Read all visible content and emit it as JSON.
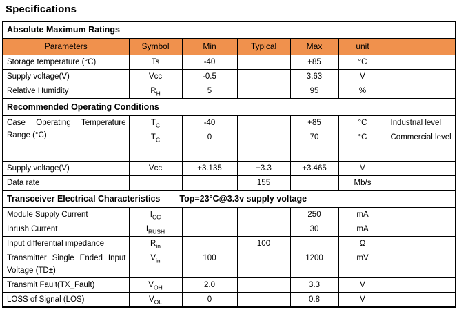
{
  "title": "Specifications",
  "table": {
    "header_bg": "#F0914D",
    "columns": [
      "Parameters",
      "Symbol",
      "Min",
      "Typical",
      "Max",
      "unit",
      ""
    ],
    "rows": [
      {
        "type": "section",
        "label": "Absolute Maximum Ratings"
      },
      {
        "type": "columns"
      },
      {
        "type": "data",
        "param": "Storage temperature (°C)",
        "symbol": "Ts",
        "sub": "",
        "min": "-40",
        "typical": "",
        "max": "+85",
        "unit": "°C",
        "note": ""
      },
      {
        "type": "data",
        "param": "Supply voltage(V)",
        "symbol": "Vcc",
        "sub": "",
        "min": "-0.5",
        "typical": "",
        "max": "3.63",
        "unit": "V",
        "note": ""
      },
      {
        "type": "data",
        "param": "Relative Humidity",
        "symbol": "R",
        "sub": "H",
        "min": "5",
        "typical": "",
        "max": "95",
        "unit": "%",
        "note": ""
      },
      {
        "type": "section",
        "label": "Recommended Operating Conditions"
      },
      {
        "type": "data",
        "param": "Case Operating Temperature Range (°C)",
        "param_rowspan": 2,
        "justify": true,
        "symbol": "T",
        "sub": "C",
        "min": "-40",
        "typical": "",
        "max": "+85",
        "unit": "°C",
        "note": "Industrial level"
      },
      {
        "type": "data",
        "param": null,
        "tall": true,
        "symbol": "T",
        "sub": "C",
        "min": "0",
        "typical": "",
        "max": "70",
        "unit": "°C",
        "note": "Commercial level"
      },
      {
        "type": "data",
        "param": "Supply voltage(V)",
        "symbol": "Vcc",
        "sub": "",
        "min": "+3.135",
        "typical": "+3.3",
        "max": "+3.465",
        "unit": "V",
        "note": ""
      },
      {
        "type": "data",
        "param": "Data rate",
        "symbol": "",
        "sub": "",
        "min": "",
        "typical": "155",
        "max": "",
        "unit": "Mb/s",
        "note": ""
      },
      {
        "type": "section",
        "label": "Transceiver Electrical Characteristics",
        "label2": "Top=23°C@3.3v supply voltage"
      },
      {
        "type": "data",
        "param": "Module Supply Current",
        "symbol": "I",
        "sub": "CC",
        "min": "",
        "typical": "",
        "max": "250",
        "unit": "mA",
        "note": ""
      },
      {
        "type": "data",
        "param": "Inrush Current",
        "symbol": "I",
        "sub": "RUSH",
        "min": "",
        "typical": "",
        "max": "30",
        "unit": "mA",
        "note": ""
      },
      {
        "type": "data",
        "param": "Input differential impedance",
        "symbol": "R",
        "sub": "in",
        "min": "",
        "typical": "100",
        "max": "",
        "unit": "Ω",
        "note": ""
      },
      {
        "type": "data",
        "param": "Transmitter Single Ended Input Voltage (TD±)",
        "justify": true,
        "symbol": "V",
        "sub": "in",
        "min": "100",
        "typical": "",
        "max": "1200",
        "unit": "mV",
        "note": ""
      },
      {
        "type": "data",
        "param": "Transmit Fault(TX_Fault)",
        "symbol": "V",
        "sub": "OH",
        "min": "2.0",
        "typical": "",
        "max": "3.3",
        "unit": "V",
        "note": ""
      },
      {
        "type": "data",
        "param": "LOSS of Signal (LOS)",
        "symbol": "V",
        "sub": "OL",
        "min": "0",
        "typical": "",
        "max": "0.8",
        "unit": "V",
        "note": ""
      }
    ]
  }
}
